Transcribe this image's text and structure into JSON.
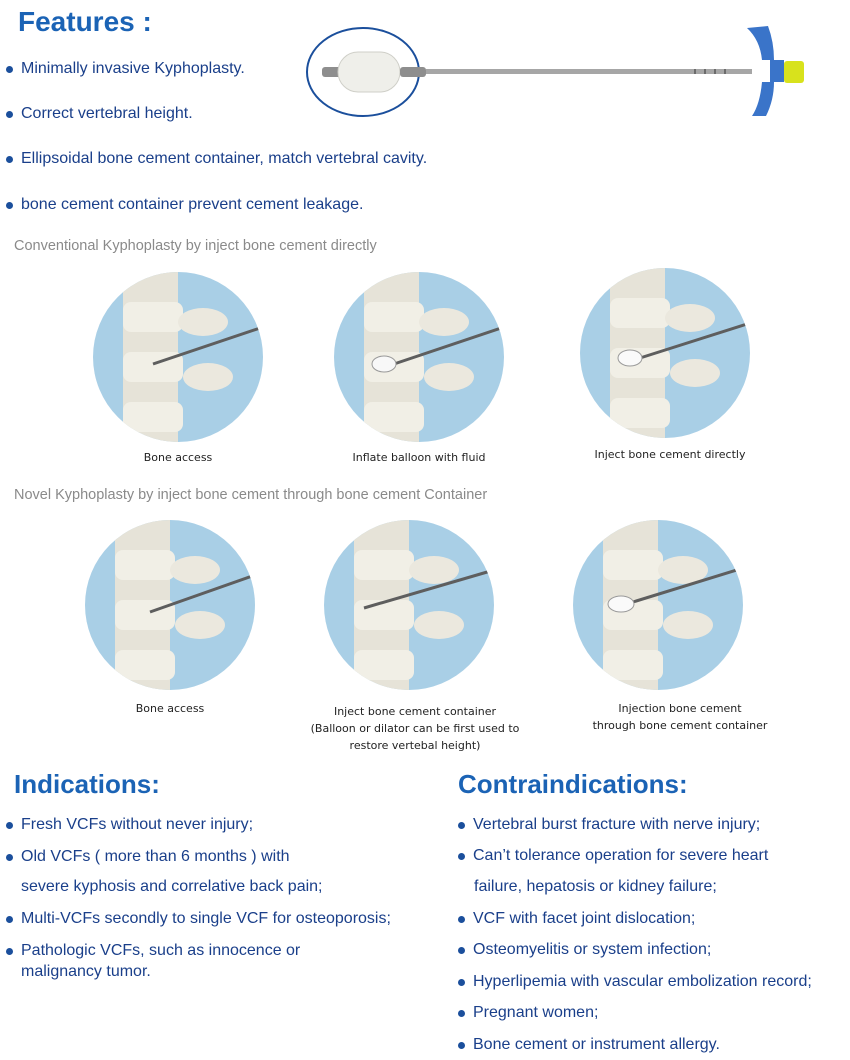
{
  "features": {
    "title": "Features :",
    "items": [
      "Minimally invasive Kyphoplasty.",
      "Correct vertebral height.",
      "Ellipsoidal bone cement container, match vertebral cavity.",
      "bone cement container prevent cement leakage."
    ]
  },
  "conventional": {
    "heading": "Conventional Kyphoplasty by inject bone cement directly",
    "steps": [
      {
        "caption": "Bone access"
      },
      {
        "caption": "Inflate balloon with fluid"
      },
      {
        "caption": "Inject bone cement directly"
      }
    ]
  },
  "novel": {
    "heading": "Novel Kyphoplasty by inject bone cement through bone cement Container",
    "steps": [
      {
        "caption_lines": [
          "Bone access"
        ]
      },
      {
        "caption_lines": [
          "Inject bone cement container",
          "(Balloon or dilator can be first used to",
          "restore vertebal height)"
        ]
      },
      {
        "caption_lines": [
          "Injection bone cement",
          "through bone cement container"
        ]
      }
    ]
  },
  "indications": {
    "title": "Indications:",
    "items": [
      {
        "lines": [
          "Fresh VCFs without never injury;"
        ]
      },
      {
        "lines": [
          "Old VCFs ( more than 6 months ) with",
          "severe kyphosis and correlative back pain;"
        ]
      },
      {
        "lines": [
          "Multi-VCFs secondly to single VCF for osteoporosis;"
        ]
      },
      {
        "lines": [
          "Pathologic VCFs, such as innocence or",
          "malignancy tumor."
        ]
      }
    ]
  },
  "contraindications": {
    "title": "Contraindications:",
    "items": [
      {
        "lines": [
          "Vertebral burst fracture with nerve injury;"
        ]
      },
      {
        "lines": [
          "Can’t tolerance operation for severe heart",
          "failure, hepatosis or kidney failure;"
        ]
      },
      {
        "lines": [
          "VCF with facet joint dislocation;"
        ]
      },
      {
        "lines": [
          "Osteomyelitis or system infection;"
        ]
      },
      {
        "lines": [
          "Hyperlipemia with vascular embolization record;"
        ]
      },
      {
        "lines": [
          "Pregnant women;"
        ]
      },
      {
        "lines": [
          "Bone cement or instrument allergy."
        ]
      }
    ]
  },
  "colors": {
    "heading_blue": "#1b63b5",
    "text_blue": "#1a3f8a",
    "circle_bg": "#a9cfe6",
    "handle_blue": "#3a74c9",
    "cap_yellow": "#d8e21c"
  }
}
